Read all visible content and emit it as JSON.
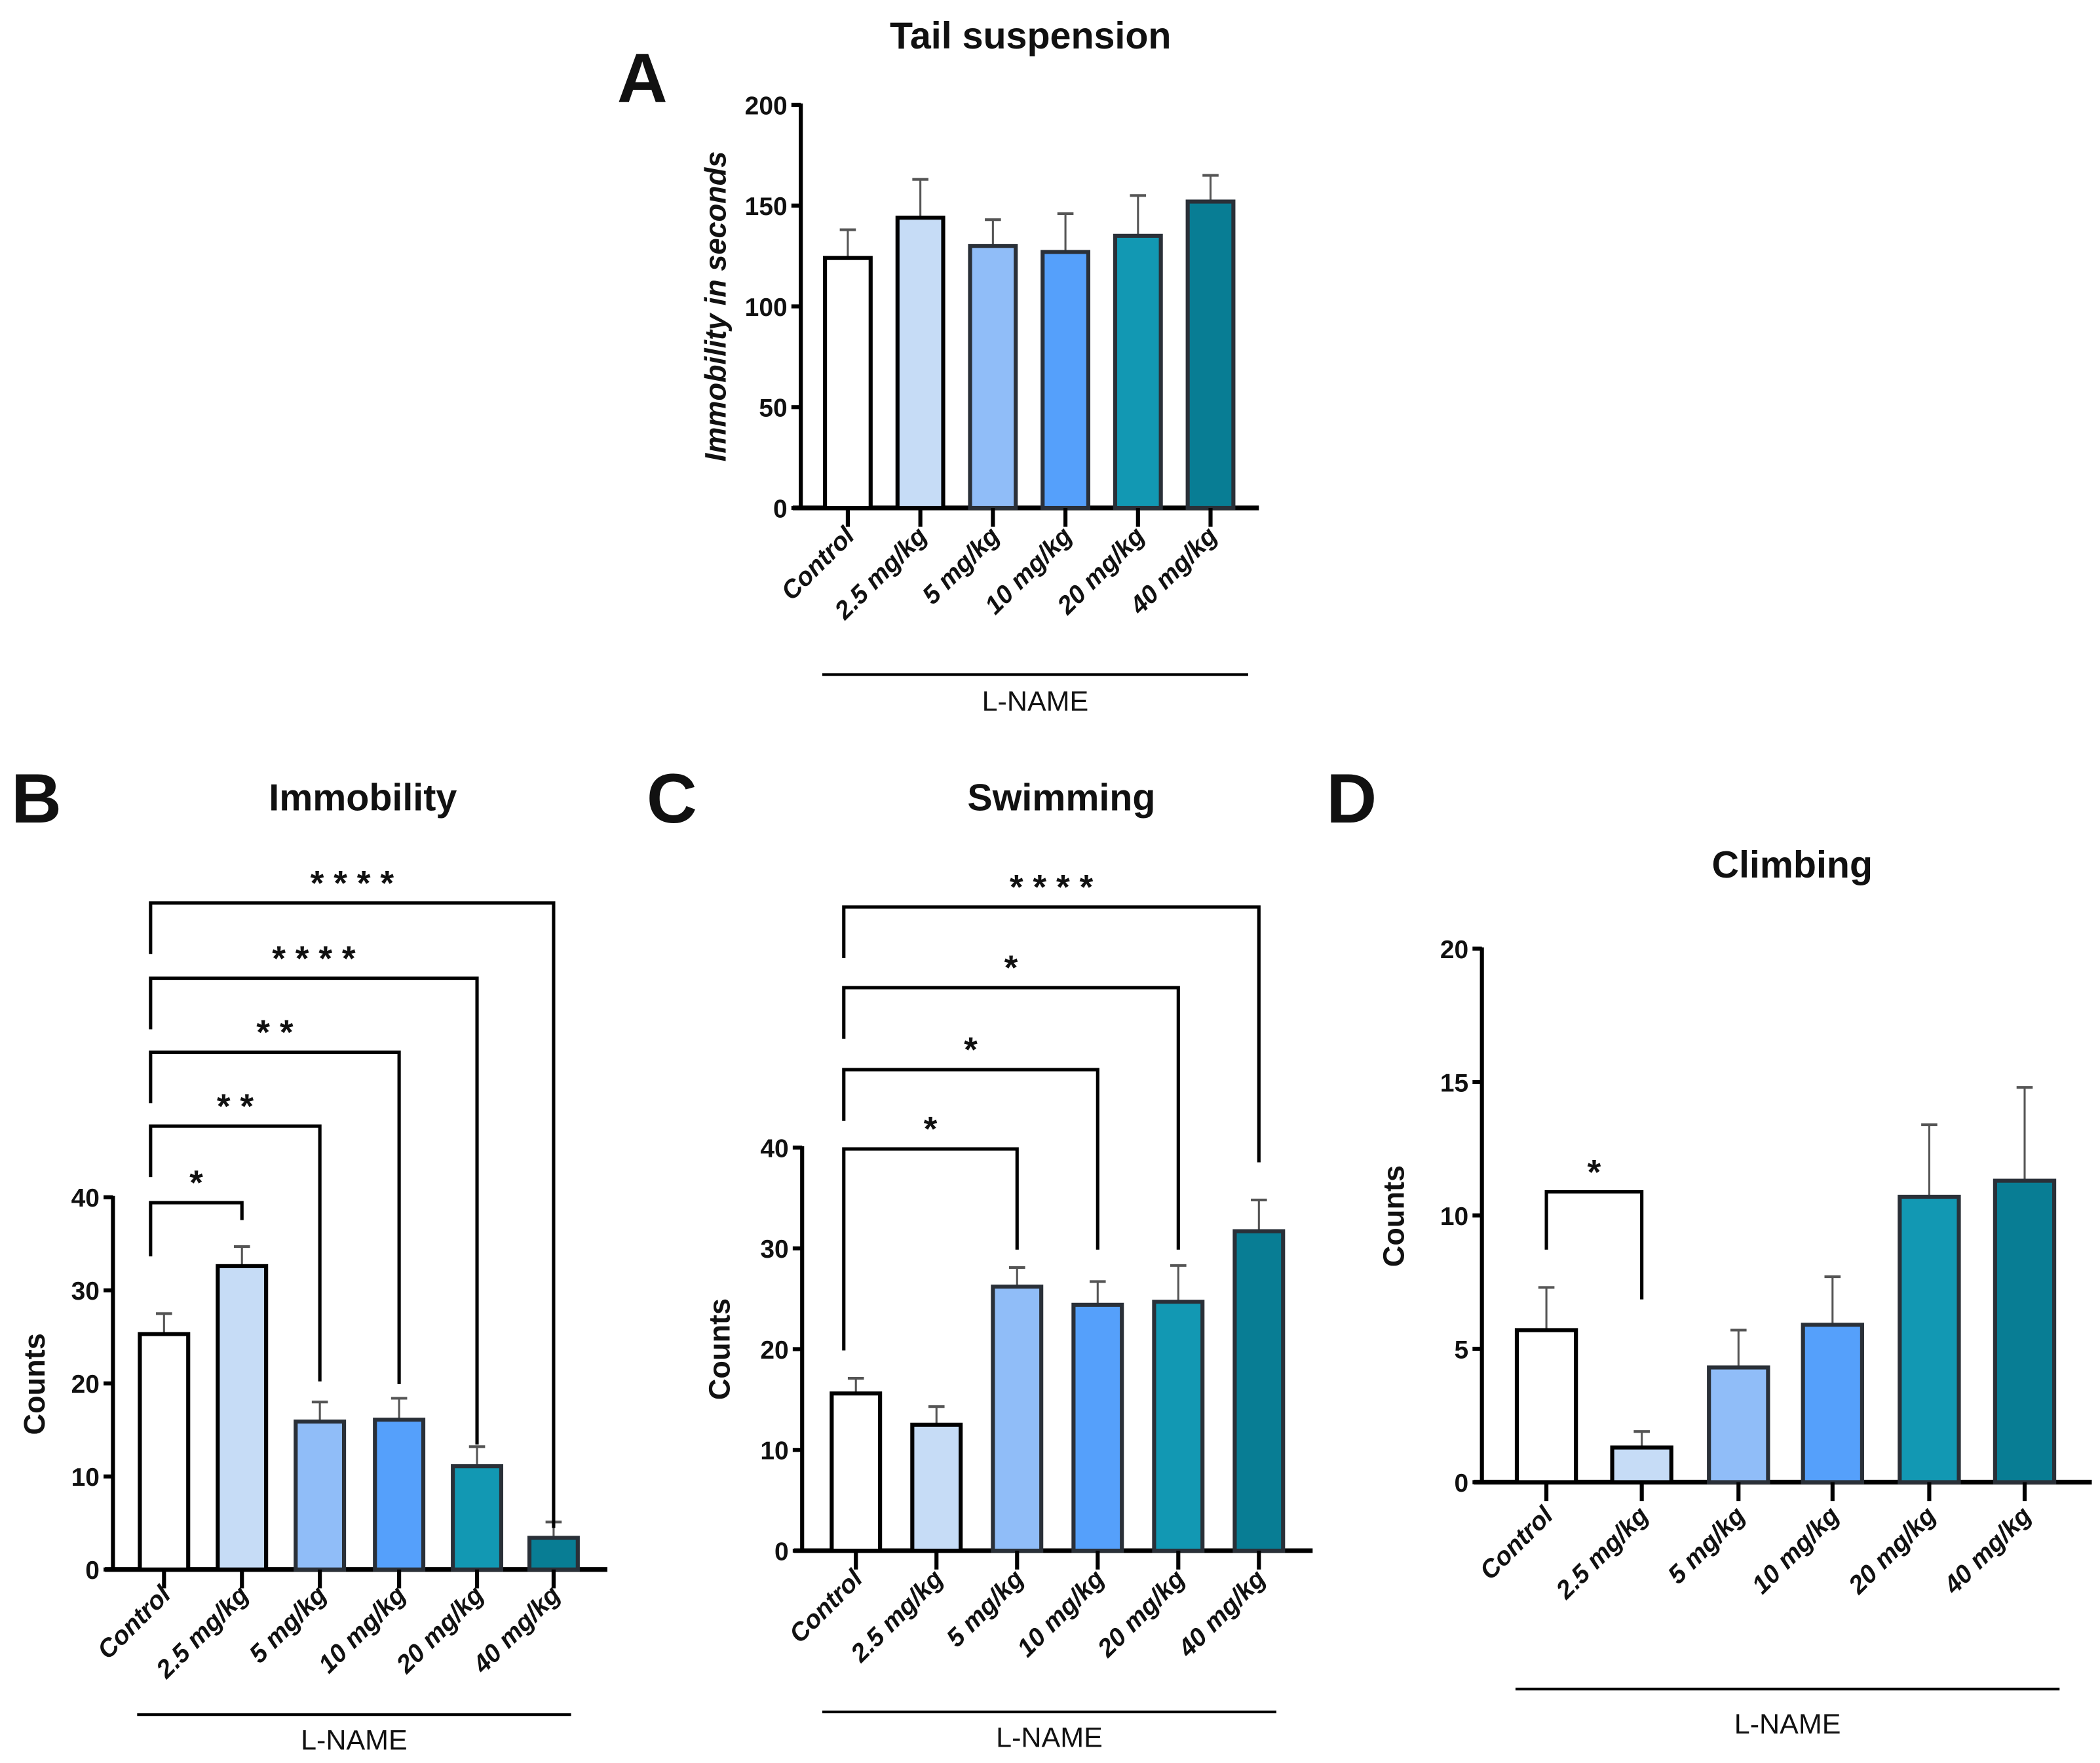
{
  "colors": [
    "#ffffff",
    "#c6dcf6",
    "#90bdf8",
    "#55a0fb",
    "#1298b3",
    "#087d94"
  ],
  "chart_data": [
    {
      "panel": "A",
      "type": "bar",
      "title": "Tail suspension",
      "ylabel": "Immobility in seconds",
      "xlabel": "",
      "group_label": "L-NAME",
      "categories": [
        "Control",
        "2.5 mg/kg",
        "5 mg/kg",
        "10 mg/kg",
        "20 mg/kg",
        "40 mg/kg"
      ],
      "values": [
        124,
        144,
        130,
        127,
        135,
        152
      ],
      "errors": [
        14,
        19,
        13,
        19,
        20,
        13
      ],
      "ylim": [
        0,
        200
      ],
      "yticks": [
        "0",
        "50",
        "100",
        "150",
        "200"
      ],
      "comparisons": []
    },
    {
      "panel": "B",
      "type": "bar",
      "title": "Immobility",
      "ylabel": "Counts",
      "xlabel": "",
      "group_label": "L-NAME",
      "categories": [
        "Control",
        "2.5 mg/kg",
        "5 mg/kg",
        "10 mg/kg",
        "20 mg/kg",
        "40 mg/kg"
      ],
      "values": [
        25.3,
        32.6,
        15.9,
        16.1,
        11.1,
        3.4
      ],
      "errors": [
        2.2,
        2.1,
        2.1,
        2.3,
        2.1,
        1.7
      ],
      "ylim": [
        0,
        40
      ],
      "yticks": [
        "0",
        "10",
        "20",
        "30",
        "40"
      ],
      "comparisons": [
        {
          "from": 0,
          "to": 1,
          "label": "*"
        },
        {
          "from": 0,
          "to": 2,
          "label": "**"
        },
        {
          "from": 0,
          "to": 3,
          "label": "**"
        },
        {
          "from": 0,
          "to": 4,
          "label": "****"
        },
        {
          "from": 0,
          "to": 5,
          "label": "****"
        }
      ]
    },
    {
      "panel": "C",
      "type": "bar",
      "title": "Swimming",
      "ylabel": "Counts",
      "xlabel": "",
      "group_label": "L-NAME",
      "categories": [
        "Control",
        "2.5 mg/kg",
        "5 mg/kg",
        "10 mg/kg",
        "20 mg/kg",
        "40 mg/kg"
      ],
      "values": [
        15.6,
        12.5,
        26.2,
        24.4,
        24.7,
        31.7
      ],
      "errors": [
        1.5,
        1.8,
        1.9,
        2.3,
        3.6,
        3.1
      ],
      "ylim": [
        0,
        40
      ],
      "yticks": [
        "0",
        "10",
        "20",
        "30",
        "40"
      ],
      "comparisons": [
        {
          "from": 0,
          "to": 2,
          "label": "*"
        },
        {
          "from": 0,
          "to": 3,
          "label": "*"
        },
        {
          "from": 0,
          "to": 4,
          "label": "*"
        },
        {
          "from": 0,
          "to": 5,
          "label": "****"
        }
      ]
    },
    {
      "panel": "D",
      "type": "bar",
      "title": "Climbing",
      "ylabel": "Counts",
      "xlabel": "",
      "group_label": "L-NAME",
      "categories": [
        "Control",
        "2.5 mg/kg",
        "5 mg/kg",
        "10 mg/kg",
        "20 mg/kg",
        "40 mg/kg"
      ],
      "values": [
        5.7,
        1.3,
        4.3,
        5.9,
        10.7,
        11.3
      ],
      "errors": [
        1.6,
        0.6,
        1.4,
        1.8,
        2.7,
        3.5
      ],
      "ylim": [
        0,
        20
      ],
      "yticks": [
        "0",
        "5",
        "10",
        "15",
        "20"
      ],
      "comparisons": [
        {
          "from": 0,
          "to": 1,
          "label": "*"
        }
      ]
    }
  ]
}
